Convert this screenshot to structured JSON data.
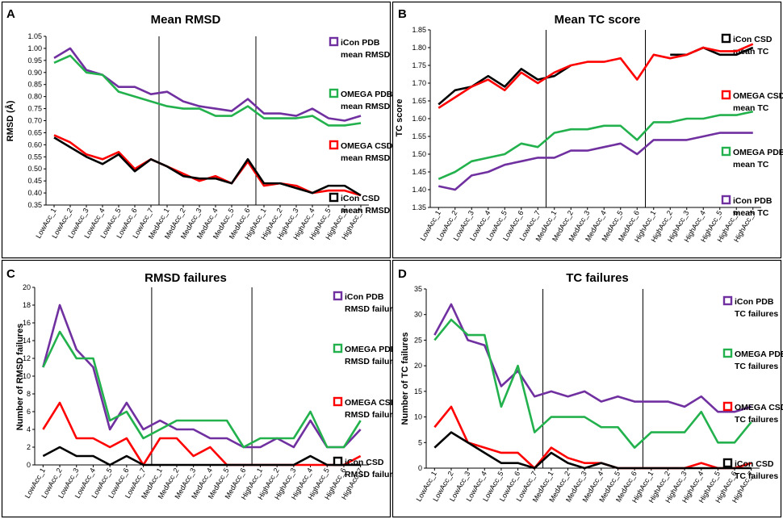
{
  "chart_data": [
    {
      "panel": "A",
      "type": "line",
      "title": "Mean RMSD",
      "ylabel": "RMSD (Å)",
      "xlabel": "",
      "ylim": [
        0.35,
        1.05
      ],
      "ytick_step": 0.05,
      "ytick_decimals": 2,
      "categories": [
        "LowAcc_1",
        "LowAcc_2",
        "LowAcc_3",
        "LowAcc_4",
        "LowAcc_5",
        "LowAcc_6",
        "LowAcc_7",
        "MedAcc_1",
        "MedAcc_2",
        "MedAcc_3",
        "MedAcc_4",
        "MedAcc_5",
        "MedAcc_6",
        "HighAcc_1",
        "HighAcc_2",
        "HighAcc_3",
        "HighAcc_4",
        "HighAcc_5",
        "HighAcc_6",
        "HighAcc_7"
      ],
      "separators_after": [
        "LowAcc_7",
        "MedAcc_6"
      ],
      "series": [
        {
          "name": "iCon PDB mean RMSD",
          "legend": [
            "iCon PDB",
            "mean RMSD"
          ],
          "color": "#7030A0",
          "values": [
            0.96,
            1.0,
            0.91,
            0.89,
            0.84,
            0.84,
            0.81,
            0.82,
            0.78,
            0.76,
            0.75,
            0.74,
            0.79,
            0.73,
            0.73,
            0.72,
            0.75,
            0.71,
            0.7,
            0.72
          ]
        },
        {
          "name": "OMEGA PDB mean RMSD",
          "legend": [
            "OMEGA PDB",
            "mean RMSD"
          ],
          "color": "#22B14C",
          "values": [
            0.94,
            0.97,
            0.9,
            0.89,
            0.82,
            0.8,
            0.78,
            0.76,
            0.75,
            0.75,
            0.72,
            0.72,
            0.76,
            0.71,
            0.71,
            0.71,
            0.72,
            0.68,
            0.68,
            0.69
          ]
        },
        {
          "name": "OMEGA CSD mean RMSD",
          "legend": [
            "OMEGA CSD",
            "mean RMSD"
          ],
          "color": "#FF0000",
          "values": [
            0.64,
            0.61,
            0.56,
            0.54,
            0.57,
            0.5,
            0.54,
            0.51,
            0.48,
            0.45,
            0.47,
            0.44,
            0.53,
            0.43,
            0.44,
            0.43,
            0.4,
            0.41,
            0.41,
            0.39
          ]
        },
        {
          "name": "iCon CSD mean RMSD",
          "legend": [
            "iCon CSD",
            "mean RMSD"
          ],
          "color": "#000000",
          "values": [
            0.63,
            0.59,
            0.55,
            0.52,
            0.56,
            0.49,
            0.54,
            0.51,
            0.47,
            0.46,
            0.46,
            0.44,
            0.54,
            0.44,
            0.44,
            0.42,
            0.4,
            0.43,
            0.43,
            0.39
          ]
        }
      ]
    },
    {
      "panel": "B",
      "type": "line",
      "title": "Mean TC score",
      "ylabel": "TC score",
      "xlabel": "",
      "ylim": [
        1.35,
        1.85
      ],
      "ytick_step": 0.05,
      "ytick_decimals": 2,
      "categories": [
        "LowAcc_1",
        "LowAcc_2",
        "LowAcc_3",
        "LowAcc_4",
        "LowAcc_5",
        "LowAcc_6",
        "LowAcc_7",
        "MedAcc_1",
        "MedAcc_2",
        "MedAcc_3",
        "MedAcc_4",
        "MedAcc_5",
        "MedAcc_6",
        "HighAcc_1",
        "HighAcc_2",
        "HighAcc_3",
        "HighAcc_4",
        "HighAcc_5",
        "HighAcc_6",
        "HighAcc_7"
      ],
      "separators_after": [
        "LowAcc_7",
        "MedAcc_6"
      ],
      "series": [
        {
          "name": "iCon CSD mean TC",
          "legend": [
            "iCon CSD",
            "mean TC"
          ],
          "color": "#000000",
          "values": [
            1.64,
            1.68,
            1.69,
            1.72,
            1.69,
            1.74,
            1.71,
            1.72,
            1.75,
            null,
            null,
            null,
            null,
            null,
            1.78,
            1.78,
            1.8,
            1.78,
            1.78,
            1.8
          ]
        },
        {
          "name": "OMEGA CSD mean TC",
          "legend": [
            "OMEGA CSD",
            "mean TC"
          ],
          "color": "#FF0000",
          "values": [
            1.63,
            1.66,
            1.69,
            1.71,
            1.68,
            1.73,
            1.7,
            1.73,
            1.75,
            1.76,
            1.76,
            1.77,
            1.71,
            1.78,
            1.77,
            1.78,
            1.8,
            1.79,
            1.79,
            1.81
          ]
        },
        {
          "name": "OMEGA PDB mean TC",
          "legend": [
            "OMEGA PDB",
            "mean TC"
          ],
          "color": "#22B14C",
          "values": [
            1.43,
            1.45,
            1.48,
            1.49,
            1.5,
            1.53,
            1.52,
            1.56,
            1.57,
            1.57,
            1.58,
            1.58,
            1.54,
            1.59,
            1.59,
            1.6,
            1.6,
            1.61,
            1.61,
            1.62
          ]
        },
        {
          "name": "iCon PDB mean TC",
          "legend": [
            "iCon PDB",
            "mean TC"
          ],
          "color": "#7030A0",
          "values": [
            1.41,
            1.4,
            1.44,
            1.45,
            1.47,
            1.48,
            1.49,
            1.49,
            1.51,
            1.51,
            1.52,
            1.53,
            1.5,
            1.54,
            1.54,
            1.54,
            1.55,
            1.56,
            1.56,
            1.56
          ]
        }
      ]
    },
    {
      "panel": "C",
      "type": "line",
      "title": "RMSD failures",
      "ylabel": "Number of RMSD failures",
      "xlabel": "",
      "ylim": [
        0,
        20
      ],
      "ytick_step": 2,
      "ytick_decimals": 0,
      "categories": [
        "LowAcc_1",
        "LowAcc_2",
        "LowAcc_3",
        "LowAcc_4",
        "LowAcc_5",
        "LowAcc_6",
        "LowAcc_7",
        "MedAcc_1",
        "MedAcc_2",
        "MedAcc_3",
        "MedAcc_4",
        "MedAcc_5",
        "MedAcc_6",
        "HighAcc_1",
        "HighAcc_2",
        "HighAcc_3",
        "HighAcc_4",
        "HighAcc_5",
        "HighAcc_6",
        "HighAcc_7"
      ],
      "separators_after": [
        "LowAcc_7",
        "MedAcc_6"
      ],
      "series": [
        {
          "name": "iCon PDB RMSD failures",
          "legend": [
            "iCon PDB",
            "RMSD failures"
          ],
          "color": "#7030A0",
          "values": [
            11,
            18,
            13,
            11,
            4,
            7,
            4,
            5,
            4,
            4,
            3,
            3,
            2,
            2,
            3,
            2,
            5,
            2,
            2,
            4
          ]
        },
        {
          "name": "OMEGA PDB RMSD failures",
          "legend": [
            "OMEGA PDB",
            "RMSD failures"
          ],
          "color": "#22B14C",
          "values": [
            11,
            15,
            12,
            12,
            5,
            6,
            3,
            4,
            5,
            5,
            5,
            5,
            2,
            3,
            3,
            3,
            6,
            2,
            2,
            5
          ]
        },
        {
          "name": "OMEGA CSD RMSD failures",
          "legend": [
            "OMEGA CSD",
            "RMSD failures"
          ],
          "color": "#FF0000",
          "values": [
            4,
            7,
            3,
            3,
            2,
            3,
            0,
            3,
            3,
            1,
            2,
            0,
            0,
            0,
            0,
            0,
            0,
            0,
            0,
            1
          ]
        },
        {
          "name": "iCon CSD RMSD failures",
          "legend": [
            "iCon CSD",
            "RMSD failures"
          ],
          "color": "#000000",
          "values": [
            1,
            2,
            1,
            1,
            0,
            1,
            0,
            0,
            0,
            0,
            0,
            0,
            0,
            0,
            0,
            0,
            1,
            0,
            0,
            0
          ]
        }
      ]
    },
    {
      "panel": "D",
      "type": "line",
      "title": "TC failures",
      "ylabel": "Number of TC failures",
      "xlabel": "",
      "ylim": [
        0,
        35
      ],
      "ytick_step": 5,
      "ytick_decimals": 0,
      "categories": [
        "LowAcc_1",
        "LowAcc_2",
        "LowAcc_3",
        "LowAcc_4",
        "LowAcc_5",
        "LowAcc_6",
        "LowAcc_7",
        "MedAcc_1",
        "MedAcc_2",
        "MedAcc_3",
        "MedAcc_4",
        "MedAcc_5",
        "MedAcc_6",
        "HighAcc_1",
        "HighAcc_2",
        "HighAcc_3",
        "HighAcc_4",
        "HighAcc_5",
        "HighAcc_6",
        "HighAcc_7"
      ],
      "separators_after": [
        "LowAcc_7",
        "MedAcc_6"
      ],
      "series": [
        {
          "name": "iCon PDB TC failures",
          "legend": [
            "iCon PDB",
            "TC failures"
          ],
          "color": "#7030A0",
          "values": [
            26,
            32,
            25,
            24,
            16,
            19,
            14,
            15,
            14,
            15,
            13,
            14,
            13,
            13,
            13,
            12,
            14,
            11,
            11,
            12
          ]
        },
        {
          "name": "OMEGA PDB TC failures",
          "legend": [
            "OMEGA PDB",
            "TC failures"
          ],
          "color": "#22B14C",
          "values": [
            25,
            29,
            26,
            26,
            12,
            20,
            7,
            10,
            10,
            10,
            8,
            8,
            4,
            7,
            7,
            7,
            11,
            5,
            5,
            9
          ]
        },
        {
          "name": "OMEGA CSD TC failures",
          "legend": [
            "OMEGA CSD",
            "TC failures"
          ],
          "color": "#FF0000",
          "values": [
            8,
            12,
            5,
            4,
            3,
            3,
            0,
            4,
            2,
            1,
            1,
            0,
            0,
            0,
            0,
            0,
            1,
            0,
            0,
            1
          ]
        },
        {
          "name": "iCon CSD TC failures",
          "legend": [
            "iCon CSD",
            "TC failures"
          ],
          "color": "#000000",
          "values": [
            4,
            7,
            5,
            3,
            1,
            1,
            0,
            3,
            1,
            0,
            1,
            0,
            0,
            0,
            0,
            0,
            0,
            0,
            0,
            0
          ]
        }
      ]
    }
  ]
}
